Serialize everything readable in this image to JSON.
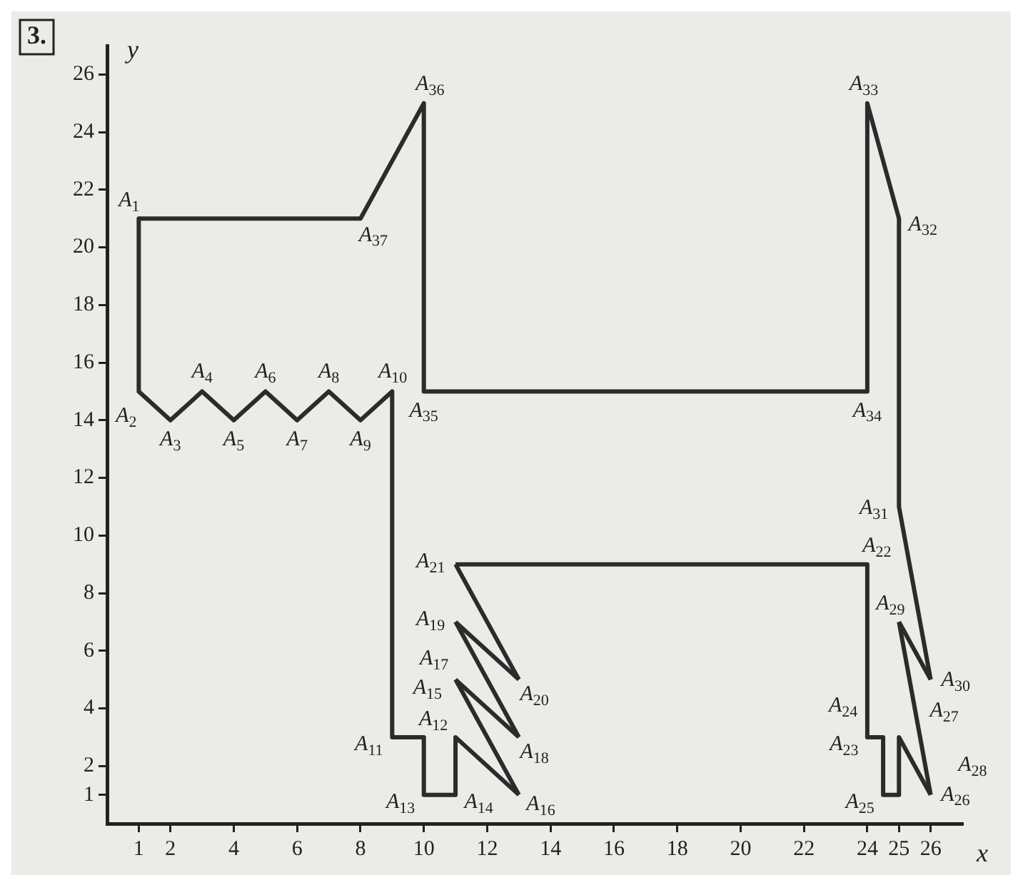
{
  "chart_data": {
    "type": "line",
    "xlabel": "x",
    "ylabel": "y",
    "marker": "none",
    "line_style": "solid",
    "grid": false,
    "xlim": [
      0,
      27
    ],
    "ylim": [
      0,
      27
    ],
    "xticks": [
      1,
      2,
      4,
      6,
      8,
      10,
      12,
      14,
      16,
      18,
      20,
      22,
      24,
      25,
      26
    ],
    "yticks": [
      1,
      2,
      4,
      6,
      8,
      10,
      12,
      14,
      16,
      18,
      20,
      22,
      24,
      26
    ],
    "series": [
      {
        "color": "#2b2b2b",
        "x": [
          1,
          1,
          2,
          3,
          4,
          5,
          6,
          7,
          8,
          9,
          9,
          10,
          10,
          11,
          11,
          13
        ],
        "values": [
          21,
          15,
          14,
          15,
          14,
          15,
          14,
          15,
          14,
          15,
          3,
          3,
          1,
          1,
          3,
          1
        ]
      },
      {
        "color": "#2b2b2b",
        "x": [
          11,
          13
        ],
        "values": [
          5,
          1
        ]
      },
      {
        "color": "#2b2b2b",
        "x": [
          11,
          13
        ],
        "values": [
          5,
          3
        ]
      },
      {
        "color": "#2b2b2b",
        "x": [
          11,
          13
        ],
        "values": [
          7,
          3
        ]
      },
      {
        "color": "#2b2b2b",
        "x": [
          11,
          13
        ],
        "values": [
          7,
          5
        ]
      },
      {
        "color": "#2b2b2b",
        "x": [
          11,
          13
        ],
        "values": [
          9,
          5
        ]
      },
      {
        "color": "#2b2b2b",
        "x": [
          11,
          24,
          24,
          24.5,
          24.5,
          25,
          25,
          26
        ],
        "values": [
          9,
          9,
          3,
          3,
          1,
          1,
          3,
          1
        ]
      },
      {
        "color": "#2b2b2b",
        "x": [
          25,
          26
        ],
        "values": [
          7,
          1
        ]
      },
      {
        "color": "#2b2b2b",
        "x": [
          25,
          26
        ],
        "values": [
          7,
          5
        ]
      },
      {
        "color": "#2b2b2b",
        "x": [
          1,
          8,
          10,
          10,
          24,
          24,
          25,
          25,
          26
        ],
        "values": [
          21,
          21,
          25,
          15,
          15,
          25,
          21,
          11,
          5
        ]
      }
    ],
    "annotations": [
      "3.",
      {
        "text": "A$_{1}$",
        "x": 1,
        "y": 21
      },
      {
        "text": "A$_{2}$",
        "x": 1,
        "y": 15
      },
      {
        "text": "A$_{3}$",
        "x": 2,
        "y": 14
      },
      {
        "text": "A$_{4}$",
        "x": 3,
        "y": 15
      },
      {
        "text": "A$_{5}$",
        "x": 4,
        "y": 14
      },
      {
        "text": "A$_{6}$",
        "x": 5,
        "y": 15
      },
      {
        "text": "A$_{7}$",
        "x": 6,
        "y": 14
      },
      {
        "text": "A$_{8}$",
        "x": 7,
        "y": 15
      },
      {
        "text": "A$_{9}$",
        "x": 8,
        "y": 14
      },
      {
        "text": "A$_{10}$",
        "x": 9,
        "y": 15
      },
      {
        "text": "A$_{11}$",
        "x": 9,
        "y": 3
      },
      {
        "text": "A$_{12}$",
        "x": 10,
        "y": 3
      },
      {
        "text": "A$_{13}$",
        "x": 10,
        "y": 1
      },
      {
        "text": "A$_{14}$",
        "x": 11,
        "y": 1
      },
      {
        "text": "A$_{15}$",
        "x": 11,
        "y": 3
      },
      {
        "text": "A$_{16}$",
        "x": 13,
        "y": 1
      },
      {
        "text": "A$_{17}$",
        "x": 11,
        "y": 5
      },
      {
        "text": "A$_{18}$",
        "x": 13,
        "y": 3
      },
      {
        "text": "A$_{19}$",
        "x": 11,
        "y": 7
      },
      {
        "text": "A$_{20}$",
        "x": 13,
        "y": 5
      },
      {
        "text": "A$_{21}$",
        "x": 11,
        "y": 9
      },
      {
        "text": "A$_{22}$",
        "x": 24,
        "y": 9
      },
      {
        "text": "A$_{23}$",
        "x": 24,
        "y": 3
      },
      {
        "text": "A$_{24}$",
        "x": 24.5,
        "y": 3
      },
      {
        "text": "A$_{25}$",
        "x": 24.5,
        "y": 1
      },
      {
        "text": "A$_{26}$",
        "x": 25,
        "y": 1
      },
      {
        "text": "A$_{27}$",
        "x": 25,
        "y": 3
      },
      {
        "text": "A$_{28}$",
        "x": 26,
        "y": 1
      },
      {
        "text": "A$_{29}$",
        "x": 25,
        "y": 7
      },
      {
        "text": "A$_{30}$",
        "x": 26,
        "y": 5
      },
      {
        "text": "A$_{31}$",
        "x": 25,
        "y": 11
      },
      {
        "text": "A$_{32}$",
        "x": 25,
        "y": 21
      },
      {
        "text": "A$_{33}$",
        "x": 24,
        "y": 25
      },
      {
        "text": "A$_{34}$",
        "x": 24,
        "y": 15
      },
      {
        "text": "A$_{35}$",
        "x": 10,
        "y": 15
      },
      {
        "text": "A$_{36}$",
        "x": 10,
        "y": 25
      },
      {
        "text": "A$_{37}$",
        "x": 8,
        "y": 21
      }
    ]
  }
}
